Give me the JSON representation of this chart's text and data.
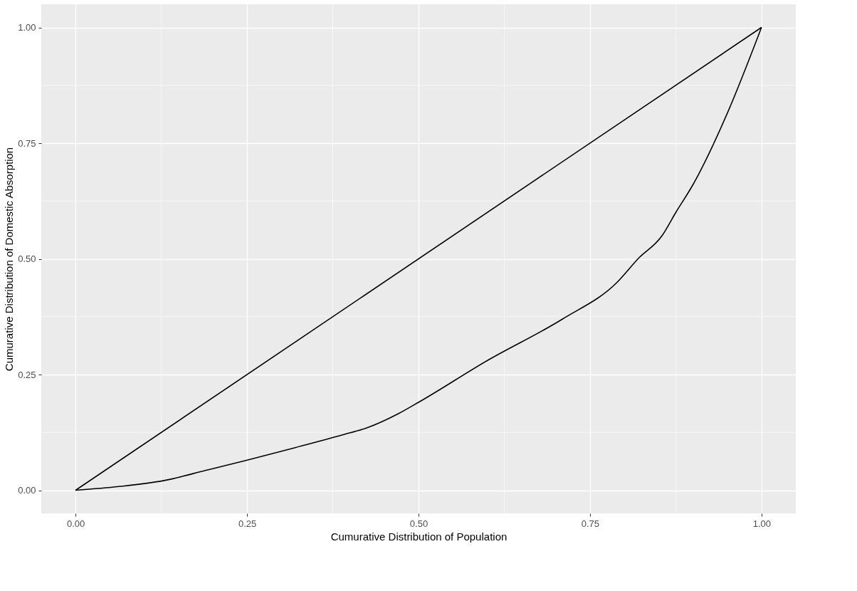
{
  "chart_data": {
    "type": "line",
    "xlabel": "Cumurative Distribution of Population",
    "ylabel": "Cumurative Distribution of Domestic Absorption",
    "series": [
      {
        "color": "#000000",
        "x": [
          0,
          1
        ],
        "values": [
          0,
          1
        ]
      },
      {
        "color": "#000000",
        "x": [
          0,
          0.063,
          0.129,
          0.19,
          0.25,
          0.32,
          0.39,
          0.425,
          0.47,
          0.5,
          0.6,
          0.71,
          0.79,
          0.82,
          0.855,
          0.875,
          0.9,
          0.95,
          1
        ],
        "values": [
          0,
          0.008,
          0.021,
          0.043,
          0.065,
          0.092,
          0.12,
          0.135,
          0.165,
          0.19,
          0.28,
          0.37,
          0.45,
          0.5,
          0.55,
          0.6,
          0.66,
          0.814,
          1
        ]
      }
    ],
    "xlim": [
      -0.05,
      1.05
    ],
    "ylim": [
      -0.05,
      1.05
    ],
    "xticks": [
      {
        "value": 0,
        "label": "0.00"
      },
      {
        "value": 0.25,
        "label": "0.25"
      },
      {
        "value": 0.5,
        "label": "0.50"
      },
      {
        "value": 0.75,
        "label": "0.75"
      },
      {
        "value": 1,
        "label": "1.00"
      }
    ],
    "yticks": [
      {
        "value": 0,
        "label": "0.00"
      },
      {
        "value": 0.25,
        "label": "0.25"
      },
      {
        "value": 0.5,
        "label": "0.50"
      },
      {
        "value": 0.75,
        "label": "0.75"
      },
      {
        "value": 1,
        "label": "1.00"
      }
    ],
    "grid": true,
    "line_style": "solid",
    "marker": "none"
  }
}
